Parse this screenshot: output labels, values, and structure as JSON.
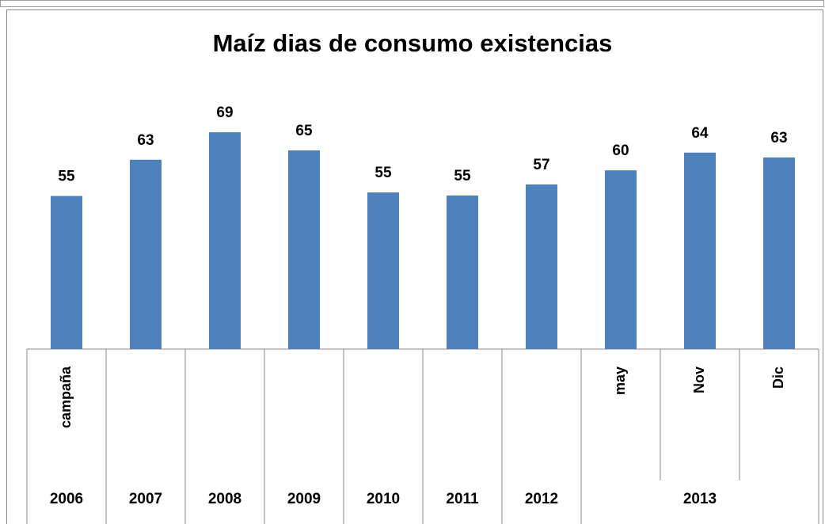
{
  "chart_data": {
    "type": "bar",
    "title": "Maíz dias de consumo existencias",
    "categories": [
      "campaña",
      null,
      null,
      null,
      null,
      null,
      null,
      "may",
      "Nov",
      "Dic"
    ],
    "groups": [
      "2006",
      "2007",
      "2008",
      "2009",
      "2010",
      "2011",
      "2012",
      "2013",
      null,
      null
    ],
    "values": [
      54.6,
      62.8,
      69,
      64.9,
      55.4,
      54.7,
      57.2,
      60.4,
      64.4,
      63.3
    ],
    "value_labels": [
      "55",
      "63",
      "69",
      "65",
      "55",
      "55",
      "57",
      "60",
      "64",
      "63"
    ],
    "color": "#4f81bd",
    "ylim": [
      20,
      80
    ]
  }
}
